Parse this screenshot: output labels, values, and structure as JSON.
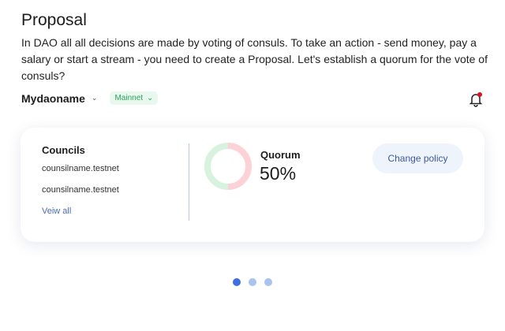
{
  "header": {
    "title": "Proposal",
    "description": "In DAO all all decisions are made by voting of consuls. To take an action - send money, pay a salary or start a stream - you need to create a Proposal. Let's establish a quorum for the vote of consuls?"
  },
  "dao": {
    "name": "Mydaoname",
    "network": "Mainnet",
    "notification_icon": "bell-icon",
    "has_notification": true
  },
  "card": {
    "councils_title": "Councils",
    "councils": [
      "counsilname.testnet",
      "counsilname.testnet"
    ],
    "view_all": "Veiw all",
    "quorum_label": "Quorum",
    "quorum_value": "50%",
    "quorum_percent": 50,
    "change_policy": "Change policy"
  },
  "colors": {
    "accent": "#3f6ee0",
    "donut_yes": "#d7f2de",
    "donut_no": "#fcd2d6",
    "network": "#29a45a"
  },
  "pagination": {
    "pages": 3,
    "active": 1
  }
}
